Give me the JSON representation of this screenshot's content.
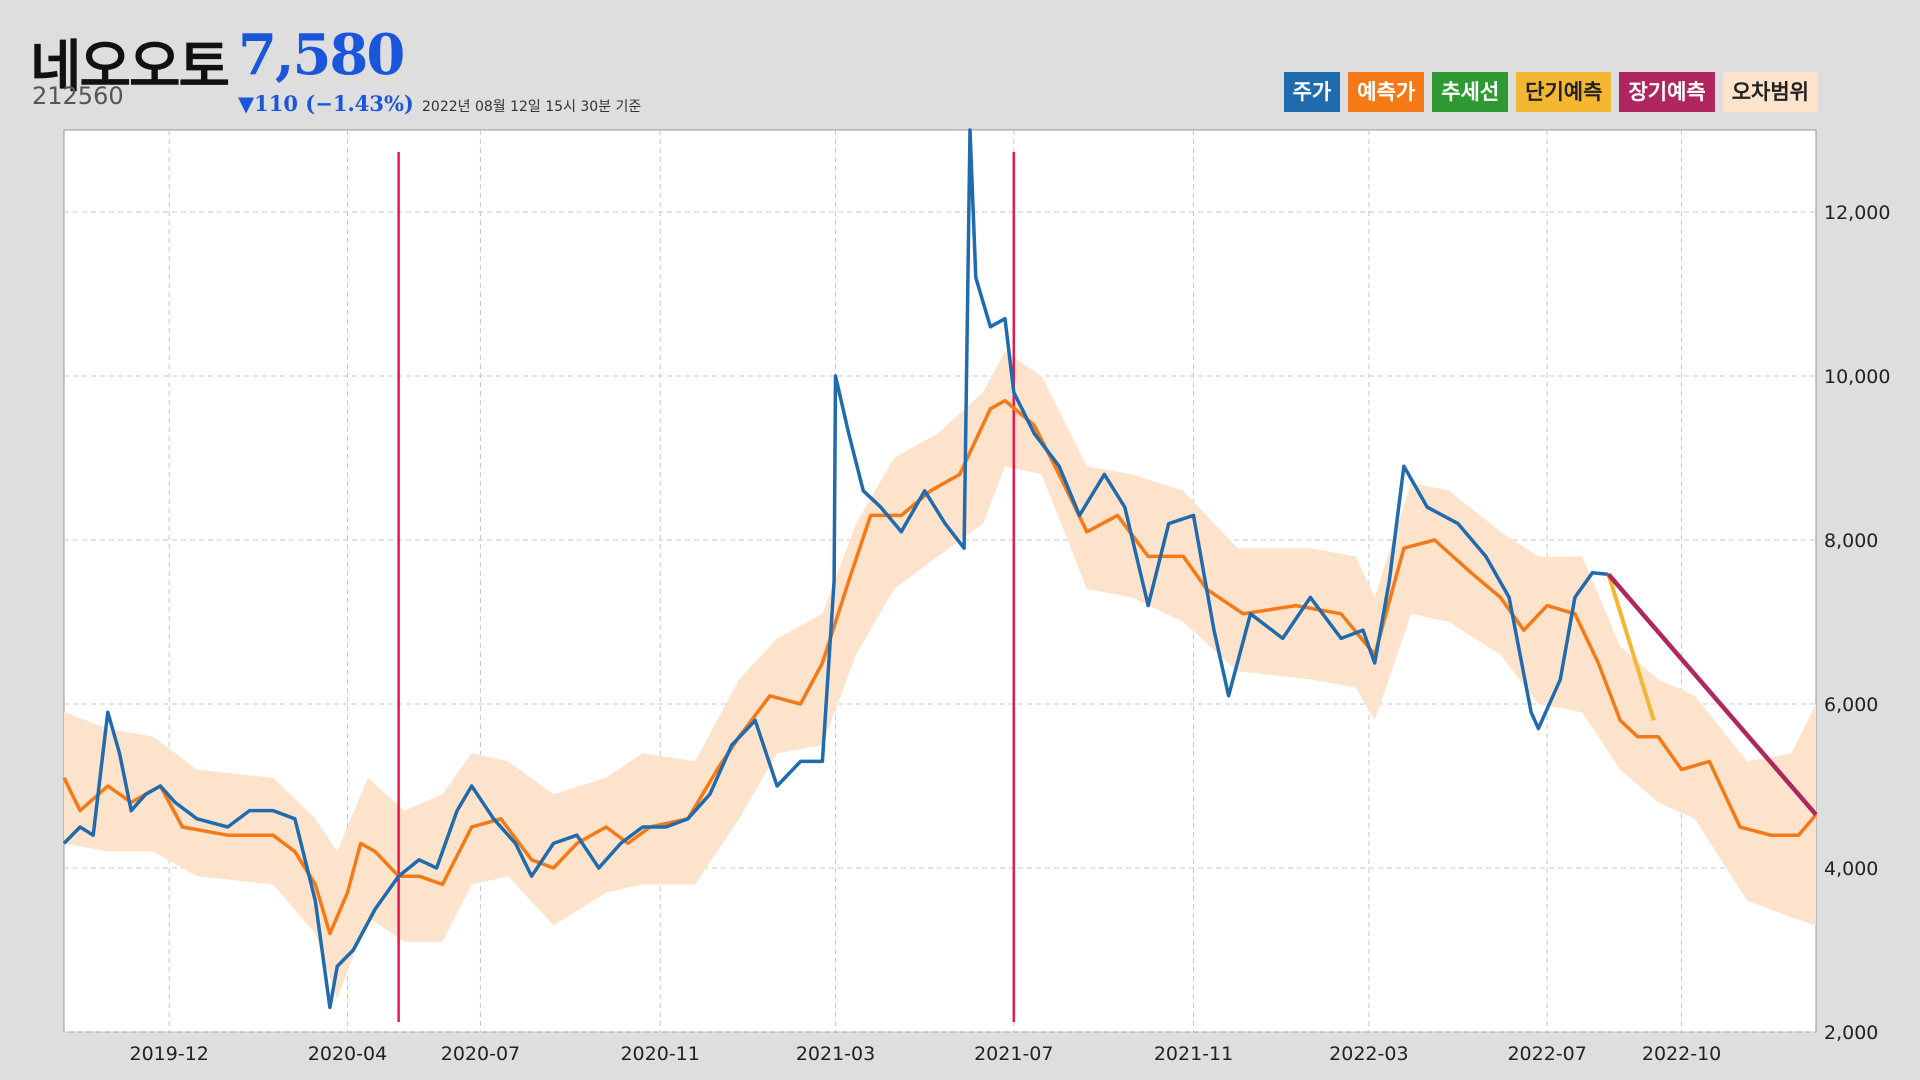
{
  "header": {
    "name": "네오오토",
    "price": "7,580",
    "code": "212560",
    "change": "▼110 (−1.43%)",
    "asof": "2022년 08월 12일 15시 30분 기준"
  },
  "legend": [
    {
      "label": "주가",
      "color": "#1f6bad",
      "text_dark": false
    },
    {
      "label": "예측가",
      "color": "#f57a17",
      "text_dark": false
    },
    {
      "label": "추세선",
      "color": "#2f9a34",
      "text_dark": false
    },
    {
      "label": "단기예측",
      "color": "#f4b731",
      "text_dark": true
    },
    {
      "label": "장기예측",
      "color": "#b0275f",
      "text_dark": false
    },
    {
      "label": "오차범위",
      "color": "#fde3cc",
      "text_dark": true
    }
  ],
  "chart_data": {
    "type": "line",
    "x_ticks": [
      "2019-12",
      "2020-04",
      "2020-07",
      "2020-11",
      "2021-03",
      "2021-07",
      "2021-11",
      "2022-03",
      "2022-07",
      "2022-10"
    ],
    "y_ticks": [
      "2,000",
      "4,000",
      "6,000",
      "8,000",
      "10,000",
      "12,000"
    ],
    "ylim": [
      2000,
      13000
    ],
    "xlim": [
      "2019-09-20",
      "2023-01-01"
    ],
    "grid": true,
    "legend_position": "top-right",
    "markers": [
      "2020-05-06",
      "2021-07-01"
    ],
    "series": [
      {
        "name": "주가",
        "color": "#1f6bad",
        "points": [
          [
            "2019-09-20",
            4300
          ],
          [
            "2019-10-01",
            4500
          ],
          [
            "2019-10-10",
            4400
          ],
          [
            "2019-10-20",
            5900
          ],
          [
            "2019-10-28",
            5400
          ],
          [
            "2019-11-05",
            4700
          ],
          [
            "2019-11-15",
            4900
          ],
          [
            "2019-11-25",
            5000
          ],
          [
            "2019-12-05",
            4800
          ],
          [
            "2019-12-20",
            4600
          ],
          [
            "2020-01-10",
            4500
          ],
          [
            "2020-01-25",
            4700
          ],
          [
            "2020-02-10",
            4700
          ],
          [
            "2020-02-25",
            4600
          ],
          [
            "2020-03-10",
            3600
          ],
          [
            "2020-03-20",
            2300
          ],
          [
            "2020-03-25",
            2800
          ],
          [
            "2020-04-05",
            3000
          ],
          [
            "2020-04-20",
            3500
          ],
          [
            "2020-05-06",
            3900
          ],
          [
            "2020-05-20",
            4100
          ],
          [
            "2020-06-01",
            4000
          ],
          [
            "2020-06-15",
            4700
          ],
          [
            "2020-06-25",
            5000
          ],
          [
            "2020-07-10",
            4600
          ],
          [
            "2020-07-25",
            4300
          ],
          [
            "2020-08-05",
            3900
          ],
          [
            "2020-08-20",
            4300
          ],
          [
            "2020-09-05",
            4400
          ],
          [
            "2020-09-20",
            4000
          ],
          [
            "2020-10-05",
            4300
          ],
          [
            "2020-10-20",
            4500
          ],
          [
            "2020-11-05",
            4500
          ],
          [
            "2020-11-20",
            4600
          ],
          [
            "2020-12-05",
            4900
          ],
          [
            "2020-12-20",
            5500
          ],
          [
            "2021-01-05",
            5800
          ],
          [
            "2021-01-20",
            5000
          ],
          [
            "2021-02-05",
            5300
          ],
          [
            "2021-02-20",
            5300
          ],
          [
            "2021-02-28",
            7500
          ],
          [
            "2021-03-01",
            10000
          ],
          [
            "2021-03-10",
            9300
          ],
          [
            "2021-03-20",
            8600
          ],
          [
            "2021-04-01",
            8400
          ],
          [
            "2021-04-15",
            8100
          ],
          [
            "2021-05-01",
            8600
          ],
          [
            "2021-05-15",
            8200
          ],
          [
            "2021-05-28",
            7900
          ],
          [
            "2021-06-01",
            13000
          ],
          [
            "2021-06-05",
            11200
          ],
          [
            "2021-06-15",
            10600
          ],
          [
            "2021-06-25",
            10700
          ],
          [
            "2021-07-01",
            9800
          ],
          [
            "2021-07-15",
            9300
          ],
          [
            "2021-08-01",
            8900
          ],
          [
            "2021-08-15",
            8300
          ],
          [
            "2021-09-01",
            8800
          ],
          [
            "2021-09-15",
            8400
          ],
          [
            "2021-10-01",
            7200
          ],
          [
            "2021-10-15",
            8200
          ],
          [
            "2021-11-01",
            8300
          ],
          [
            "2021-11-15",
            6900
          ],
          [
            "2021-11-25",
            6100
          ],
          [
            "2021-12-10",
            7100
          ],
          [
            "2022-01-01",
            6800
          ],
          [
            "2022-01-20",
            7300
          ],
          [
            "2022-02-10",
            6800
          ],
          [
            "2022-02-25",
            6900
          ],
          [
            "2022-03-05",
            6500
          ],
          [
            "2022-03-15",
            7500
          ],
          [
            "2022-03-25",
            8900
          ],
          [
            "2022-04-10",
            8400
          ],
          [
            "2022-05-01",
            8200
          ],
          [
            "2022-05-20",
            7800
          ],
          [
            "2022-06-05",
            7300
          ],
          [
            "2022-06-20",
            5900
          ],
          [
            "2022-06-25",
            5700
          ],
          [
            "2022-07-10",
            6300
          ],
          [
            "2022-07-20",
            7300
          ],
          [
            "2022-08-01",
            7600
          ],
          [
            "2022-08-12",
            7580
          ]
        ]
      },
      {
        "name": "예측가",
        "color": "#f57a17",
        "points": [
          [
            "2019-09-20",
            5100
          ],
          [
            "2019-10-01",
            4700
          ],
          [
            "2019-10-20",
            5000
          ],
          [
            "2019-11-05",
            4800
          ],
          [
            "2019-11-25",
            5000
          ],
          [
            "2019-12-10",
            4500
          ],
          [
            "2020-01-10",
            4400
          ],
          [
            "2020-02-10",
            4400
          ],
          [
            "2020-02-25",
            4200
          ],
          [
            "2020-03-10",
            3800
          ],
          [
            "2020-03-20",
            3200
          ],
          [
            "2020-04-01",
            3700
          ],
          [
            "2020-04-10",
            4300
          ],
          [
            "2020-04-20",
            4200
          ],
          [
            "2020-05-06",
            3900
          ],
          [
            "2020-05-20",
            3900
          ],
          [
            "2020-06-05",
            3800
          ],
          [
            "2020-06-25",
            4500
          ],
          [
            "2020-07-15",
            4600
          ],
          [
            "2020-08-05",
            4100
          ],
          [
            "2020-08-20",
            4000
          ],
          [
            "2020-09-05",
            4300
          ],
          [
            "2020-09-25",
            4500
          ],
          [
            "2020-10-10",
            4300
          ],
          [
            "2020-10-25",
            4500
          ],
          [
            "2020-11-20",
            4600
          ],
          [
            "2020-12-10",
            5200
          ],
          [
            "2020-12-25",
            5600
          ],
          [
            "2021-01-15",
            6100
          ],
          [
            "2021-02-05",
            6000
          ],
          [
            "2021-02-20",
            6500
          ],
          [
            "2021-03-10",
            7500
          ],
          [
            "2021-03-25",
            8300
          ],
          [
            "2021-04-15",
            8300
          ],
          [
            "2021-05-05",
            8600
          ],
          [
            "2021-05-25",
            8800
          ],
          [
            "2021-06-15",
            9600
          ],
          [
            "2021-06-25",
            9700
          ],
          [
            "2021-07-15",
            9400
          ],
          [
            "2021-08-01",
            8800
          ],
          [
            "2021-08-20",
            8100
          ],
          [
            "2021-09-10",
            8300
          ],
          [
            "2021-10-01",
            7800
          ],
          [
            "2021-10-25",
            7800
          ],
          [
            "2021-11-10",
            7400
          ],
          [
            "2021-12-05",
            7100
          ],
          [
            "2022-01-10",
            7200
          ],
          [
            "2022-02-10",
            7100
          ],
          [
            "2022-03-05",
            6600
          ],
          [
            "2022-03-25",
            7900
          ],
          [
            "2022-04-15",
            8000
          ],
          [
            "2022-05-10",
            7600
          ],
          [
            "2022-05-30",
            7300
          ],
          [
            "2022-06-15",
            6900
          ],
          [
            "2022-07-01",
            7200
          ],
          [
            "2022-07-20",
            7100
          ],
          [
            "2022-08-05",
            6500
          ],
          [
            "2022-08-20",
            5800
          ],
          [
            "2022-09-01",
            5600
          ],
          [
            "2022-09-15",
            5600
          ],
          [
            "2022-10-01",
            5200
          ],
          [
            "2022-10-20",
            5300
          ],
          [
            "2022-11-10",
            4500
          ],
          [
            "2022-12-01",
            4400
          ],
          [
            "2022-12-20",
            4400
          ],
          [
            "2023-01-01",
            4650
          ]
        ]
      },
      {
        "name": "단기예측",
        "color": "#f4b731",
        "points": [
          [
            "2022-08-12",
            7580
          ],
          [
            "2022-09-12",
            5800
          ]
        ]
      },
      {
        "name": "장기예측",
        "color": "#b0275f",
        "points": [
          [
            "2022-08-12",
            7580
          ],
          [
            "2023-01-01",
            4650
          ]
        ]
      }
    ],
    "band": {
      "name": "오차범위",
      "color": "#fde3cc",
      "upper": [
        [
          "2019-09-20",
          5900
        ],
        [
          "2019-10-20",
          5700
        ],
        [
          "2019-11-20",
          5600
        ],
        [
          "2019-12-20",
          5200
        ],
        [
          "2020-02-10",
          5100
        ],
        [
          "2020-03-10",
          4600
        ],
        [
          "2020-03-25",
          4200
        ],
        [
          "2020-04-15",
          5100
        ],
        [
          "2020-05-10",
          4700
        ],
        [
          "2020-06-05",
          4900
        ],
        [
          "2020-06-25",
          5400
        ],
        [
          "2020-07-20",
          5300
        ],
        [
          "2020-08-20",
          4900
        ],
        [
          "2020-09-25",
          5100
        ],
        [
          "2020-10-20",
          5400
        ],
        [
          "2020-11-25",
          5300
        ],
        [
          "2020-12-25",
          6300
        ],
        [
          "2021-01-20",
          6800
        ],
        [
          "2021-02-20",
          7100
        ],
        [
          "2021-03-15",
          8200
        ],
        [
          "2021-04-10",
          9000
        ],
        [
          "2021-05-10",
          9300
        ],
        [
          "2021-06-10",
          9800
        ],
        [
          "2021-06-25",
          10300
        ],
        [
          "2021-07-20",
          10000
        ],
        [
          "2021-08-20",
          8900
        ],
        [
          "2021-09-20",
          8800
        ],
        [
          "2021-10-25",
          8600
        ],
        [
          "2021-12-01",
          7900
        ],
        [
          "2022-01-20",
          7900
        ],
        [
          "2022-02-20",
          7800
        ],
        [
          "2022-03-05",
          7300
        ],
        [
          "2022-03-30",
          8700
        ],
        [
          "2022-04-25",
          8600
        ],
        [
          "2022-05-30",
          8100
        ],
        [
          "2022-06-25",
          7800
        ],
        [
          "2022-07-25",
          7800
        ],
        [
          "2022-08-20",
          6700
        ],
        [
          "2022-09-15",
          6300
        ],
        [
          "2022-10-10",
          6100
        ],
        [
          "2022-11-15",
          5300
        ],
        [
          "2022-12-15",
          5400
        ],
        [
          "2023-01-01",
          6000
        ]
      ],
      "lower": [
        [
          "2019-09-20",
          4300
        ],
        [
          "2019-10-20",
          4200
        ],
        [
          "2019-11-20",
          4200
        ],
        [
          "2019-12-20",
          3900
        ],
        [
          "2020-02-10",
          3800
        ],
        [
          "2020-03-10",
          3200
        ],
        [
          "2020-03-25",
          2400
        ],
        [
          "2020-04-15",
          3400
        ],
        [
          "2020-05-10",
          3100
        ],
        [
          "2020-06-05",
          3100
        ],
        [
          "2020-06-25",
          3800
        ],
        [
          "2020-07-20",
          3900
        ],
        [
          "2020-08-20",
          3300
        ],
        [
          "2020-09-25",
          3700
        ],
        [
          "2020-10-20",
          3800
        ],
        [
          "2020-11-25",
          3800
        ],
        [
          "2020-12-25",
          4600
        ],
        [
          "2021-01-20",
          5400
        ],
        [
          "2021-02-20",
          5500
        ],
        [
          "2021-03-15",
          6600
        ],
        [
          "2021-04-10",
          7400
        ],
        [
          "2021-05-10",
          7800
        ],
        [
          "2021-06-10",
          8200
        ],
        [
          "2021-06-25",
          8900
        ],
        [
          "2021-07-20",
          8800
        ],
        [
          "2021-08-20",
          7400
        ],
        [
          "2021-09-20",
          7300
        ],
        [
          "2021-10-25",
          7000
        ],
        [
          "2021-12-01",
          6400
        ],
        [
          "2022-01-20",
          6300
        ],
        [
          "2022-02-20",
          6200
        ],
        [
          "2022-03-05",
          5800
        ],
        [
          "2022-03-30",
          7100
        ],
        [
          "2022-04-25",
          7000
        ],
        [
          "2022-05-30",
          6600
        ],
        [
          "2022-06-25",
          6000
        ],
        [
          "2022-07-25",
          5900
        ],
        [
          "2022-08-20",
          5200
        ],
        [
          "2022-09-15",
          4800
        ],
        [
          "2022-10-10",
          4600
        ],
        [
          "2022-11-15",
          3600
        ],
        [
          "2022-12-15",
          3400
        ],
        [
          "2023-01-01",
          3300
        ]
      ]
    }
  }
}
